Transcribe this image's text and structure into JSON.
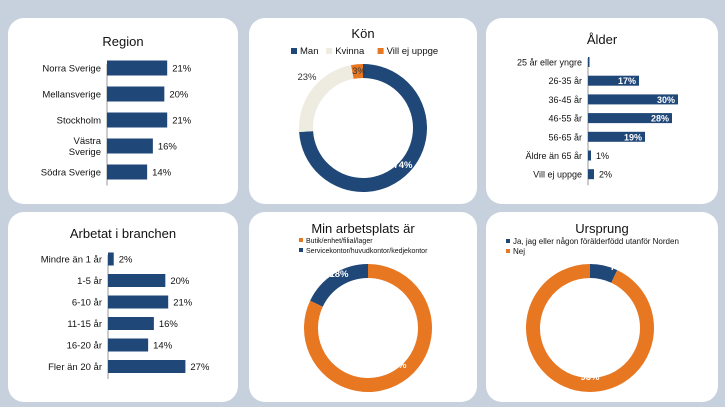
{
  "chart_data": [
    {
      "type": "bar",
      "title": "Region",
      "categories": [
        "Norra Sverige",
        "Mellansverige",
        "Stockholm",
        "Västra\nSverige",
        "Södra Sverige"
      ],
      "values": [
        21,
        20,
        21,
        16,
        14
      ],
      "value_labels": [
        "21%",
        "20%",
        "21%",
        "16%",
        "14%"
      ],
      "xlim": [
        0,
        30
      ],
      "orientation": "horizontal",
      "color": "#1f4778"
    },
    {
      "type": "pie",
      "title": "Kön",
      "categories": [
        "Man",
        "Kvinna",
        "Vill ej uppge"
      ],
      "values": [
        74,
        23,
        3
      ],
      "value_labels": [
        "74%",
        "23%",
        "3%"
      ],
      "colors": [
        "#1f4778",
        "#eeece1",
        "#e87722"
      ],
      "donut": true,
      "legend": "top"
    },
    {
      "type": "bar",
      "title": "Ålder",
      "categories": [
        "25 år eller yngre",
        "26-35 år",
        "36-45 år",
        "46-55 år",
        "56-65 år",
        "Äldre än 65 år",
        "Vill ej uppge"
      ],
      "values": [
        0.5,
        17,
        30,
        28,
        19,
        1,
        2
      ],
      "value_labels": [
        "",
        "17%",
        "30%",
        "28%",
        "19%",
        "1%",
        "2%"
      ],
      "xlim": [
        0,
        30
      ],
      "orientation": "horizontal",
      "color": "#1f4778"
    },
    {
      "type": "bar",
      "title": "Arbetat i branchen",
      "categories": [
        "Mindre än 1 år",
        "1-5 år",
        "6-10 år",
        "11-15 år",
        "16-20 år",
        "Fler än 20 år"
      ],
      "values": [
        2,
        20,
        21,
        16,
        14,
        27
      ],
      "value_labels": [
        "2%",
        "20%",
        "21%",
        "16%",
        "14%",
        "27%"
      ],
      "xlim": [
        0,
        30
      ],
      "orientation": "horizontal",
      "color": "#1f4778"
    },
    {
      "type": "pie",
      "title": "Min arbetsplats är",
      "categories": [
        "Butik/enhet/filial/lager",
        "Servicekontor/huvudkontor/kedjekontor"
      ],
      "values": [
        82,
        18
      ],
      "value_labels": [
        "82%",
        "18%"
      ],
      "colors": [
        "#e87722",
        "#1f4778"
      ],
      "donut": true,
      "legend": "top-left"
    },
    {
      "type": "pie",
      "title": "Ursprung",
      "categories": [
        "Ja, jag eller någon förälderfödd utanför Norden",
        "Nej"
      ],
      "values": [
        7,
        93
      ],
      "value_labels": [
        "7%",
        "93%"
      ],
      "colors": [
        "#1f4778",
        "#e87722"
      ],
      "donut": true,
      "legend": "top-left"
    }
  ]
}
